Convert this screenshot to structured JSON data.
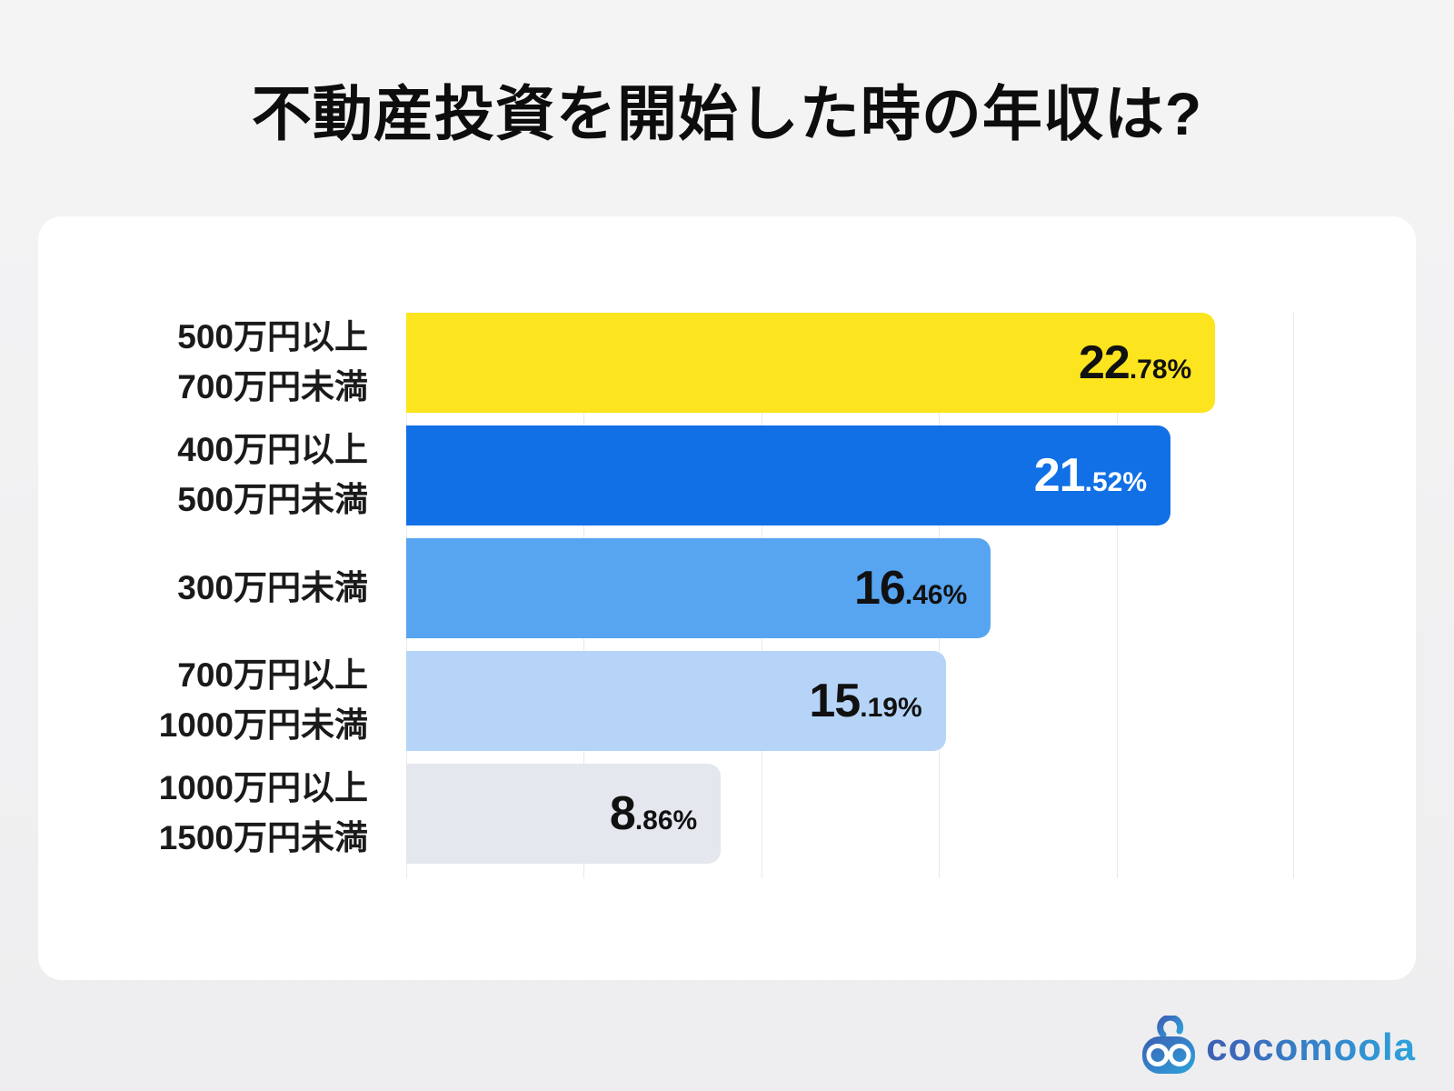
{
  "title": "不動産投資を開始した時の年収は?",
  "chart_data": {
    "type": "bar",
    "orientation": "horizontal",
    "title": "不動産投資を開始した時の年収は?",
    "xlabel": "",
    "ylabel": "",
    "unit": "%",
    "xlim": [
      0,
      25
    ],
    "gridline_step": 5,
    "grid": true,
    "legend": false,
    "categories": [
      "500万円以上 700万円未満",
      "400万円以上 500万円未満",
      "300万円未満",
      "700万円以上 1000万円未満",
      "1000万円以上 1500万円未満"
    ],
    "values": [
      22.78,
      21.52,
      16.46,
      15.19,
      8.86
    ],
    "bars": [
      {
        "label_lines": [
          "500万円以上",
          "700万円未満"
        ],
        "value": 22.78,
        "value_main": "22",
        "value_sub": ".78%",
        "color": "#FCE41F",
        "text_color": "#111111"
      },
      {
        "label_lines": [
          "400万円以上",
          "500万円未満"
        ],
        "value": 21.52,
        "value_main": "21",
        "value_sub": ".52%",
        "color": "#1170E6",
        "text_color": "#FFFFFF"
      },
      {
        "label_lines": [
          "300万円未満"
        ],
        "value": 16.46,
        "value_main": "16",
        "value_sub": ".46%",
        "color": "#57A5F0",
        "text_color": "#111111"
      },
      {
        "label_lines": [
          "700万円以上",
          "1000万円未満"
        ],
        "value": 15.19,
        "value_main": "15",
        "value_sub": ".19%",
        "color": "#B5D4F8",
        "text_color": "#111111"
      },
      {
        "label_lines": [
          "1000万円以上",
          "1500万円未満"
        ],
        "value": 8.86,
        "value_main": "8",
        "value_sub": ".86%",
        "color": "#E4E7EE",
        "text_color": "#111111"
      }
    ]
  },
  "footer": {
    "logo_text": "cocomoola"
  },
  "colors": {
    "page_bg_top": "#f4f4f5",
    "page_bg_bottom": "#eeeef0",
    "card_bg": "#ffffff",
    "gridline": "#e9e9eb",
    "title_text": "#0d0d0d",
    "label_text": "#1a1a1a",
    "logo_blue_dark": "#3d5fb4",
    "logo_blue_light": "#2da3dc"
  }
}
